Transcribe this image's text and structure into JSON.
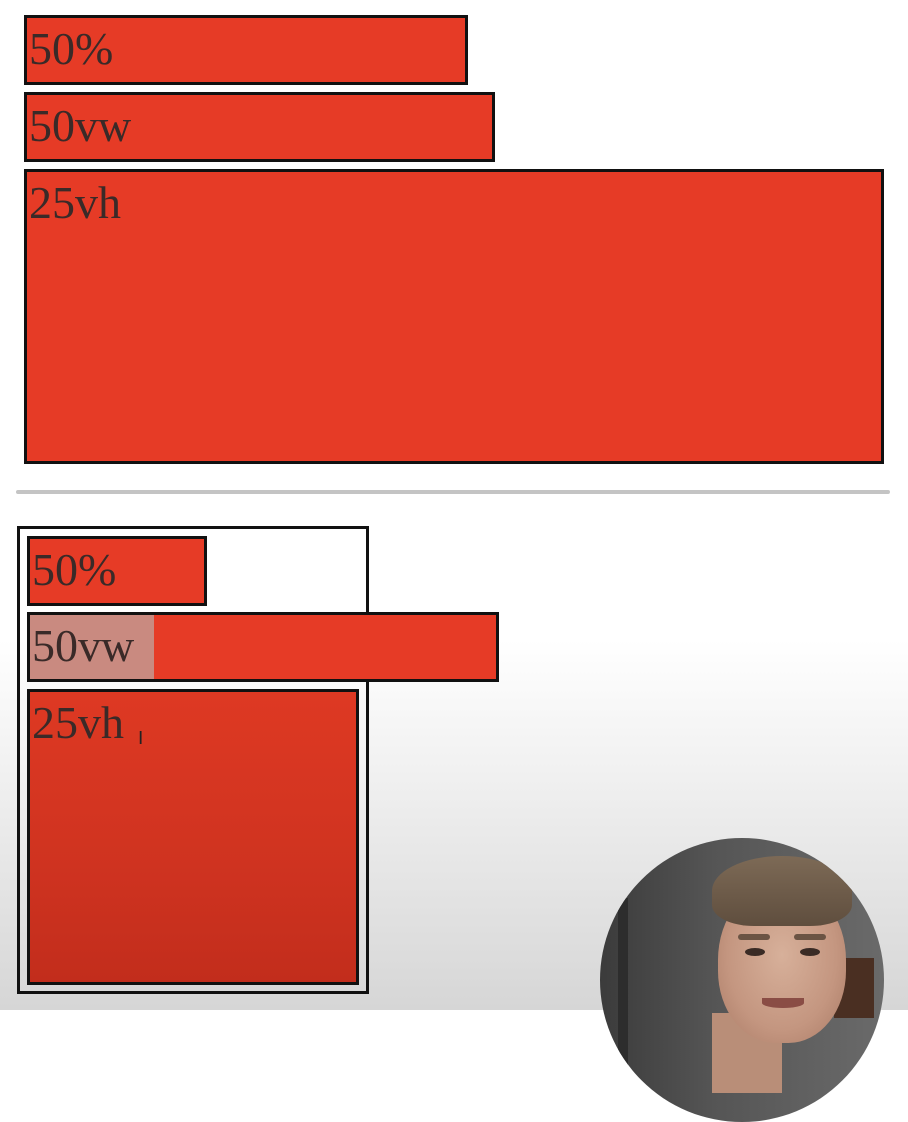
{
  "top_section": {
    "box_percent": {
      "label": "50%"
    },
    "box_vw": {
      "label": "50vw"
    },
    "box_vh": {
      "label": "25vh"
    }
  },
  "bottom_section": {
    "box_percent": {
      "label": "50%"
    },
    "box_vw": {
      "label": "50vw",
      "selected_text": "50vw"
    },
    "box_vh": {
      "label": "25vh"
    }
  },
  "colors": {
    "box_fill": "#e63b26",
    "box_border": "#111111",
    "divider": "#c4c4c4",
    "selection": "#c98a80"
  },
  "icons": {
    "text_cursor": "i-beam-cursor-icon"
  }
}
